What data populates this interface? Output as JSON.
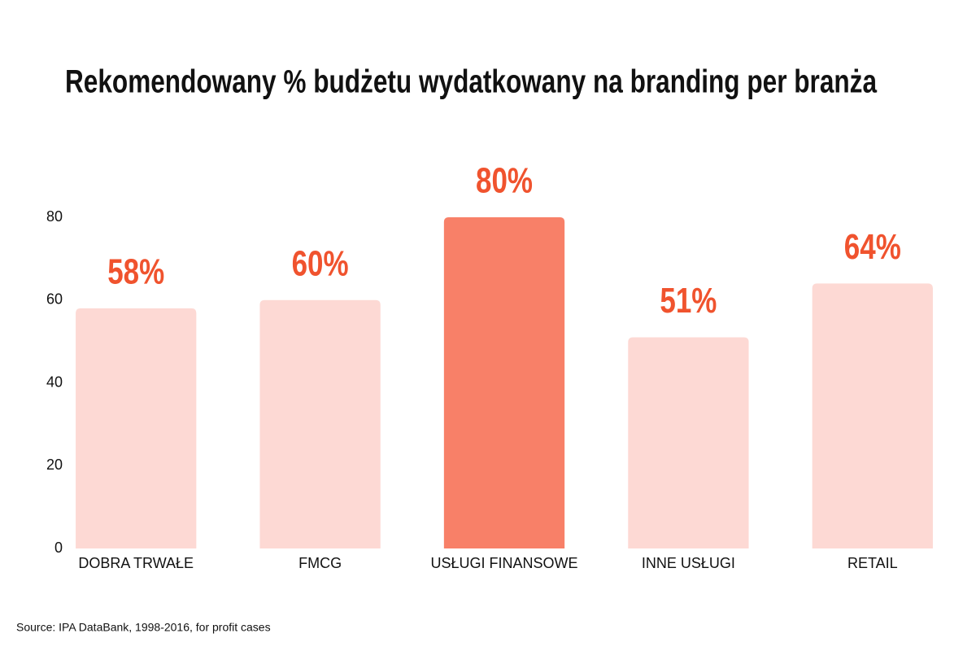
{
  "chart_data": {
    "type": "bar",
    "title": "Rekomendowany % budżetu wydatkowany na branding per branża",
    "categories": [
      "DOBRA TRWAŁE",
      "FMCG",
      "USŁUGI FINANSOWE",
      "INNE USŁUGI",
      "RETAIL"
    ],
    "values": [
      58,
      60,
      80,
      51,
      64
    ],
    "value_labels": [
      "58%",
      "60%",
      "80%",
      "51%",
      "64%"
    ],
    "colors": [
      "#fdd9d4",
      "#fdd9d4",
      "#f88068",
      "#fdd9d4",
      "#fdd9d4"
    ],
    "label_color": "#f0532e",
    "ylim": [
      0,
      80
    ],
    "yticks": [
      0,
      20,
      40,
      60,
      80
    ],
    "grid": false,
    "source": "Source: IPA DataBank, 1998-2016, for profit cases"
  }
}
